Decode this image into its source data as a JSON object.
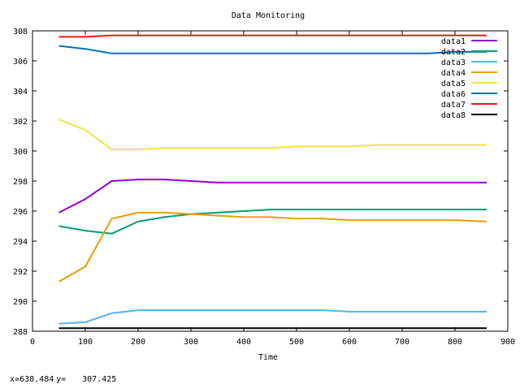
{
  "status": {
    "x_label": "x=",
    "x_value": "638.484",
    "y_label": "y=",
    "y_value": "307.425"
  },
  "chart_data": {
    "type": "line",
    "title": "Data Monitoring",
    "xlabel": "Time",
    "ylabel": "",
    "xlim": [
      0,
      900
    ],
    "ylim": [
      288,
      308
    ],
    "xticks": [
      0,
      100,
      200,
      300,
      400,
      500,
      600,
      700,
      800,
      900
    ],
    "yticks": [
      288,
      290,
      292,
      294,
      296,
      298,
      300,
      302,
      304,
      306,
      308
    ],
    "grid": false,
    "legend_position": "top-right",
    "x": [
      50,
      100,
      150,
      200,
      250,
      300,
      350,
      400,
      450,
      500,
      550,
      600,
      650,
      700,
      750,
      800,
      860
    ],
    "series": [
      {
        "name": "data1",
        "color": "#9400d3",
        "values": [
          295.9,
          296.8,
          298.0,
          298.1,
          298.1,
          298.0,
          297.9,
          297.9,
          297.9,
          297.9,
          297.9,
          297.9,
          297.9,
          297.9,
          297.9,
          297.9,
          297.9
        ]
      },
      {
        "name": "data2",
        "color": "#009e73",
        "values": [
          295.0,
          294.7,
          294.5,
          295.3,
          295.6,
          295.8,
          295.9,
          296.0,
          296.1,
          296.1,
          296.1,
          296.1,
          296.1,
          296.1,
          296.1,
          296.1,
          296.1
        ]
      },
      {
        "name": "data3",
        "color": "#56b4e9",
        "values": [
          288.5,
          288.6,
          289.2,
          289.4,
          289.4,
          289.4,
          289.4,
          289.4,
          289.4,
          289.4,
          289.4,
          289.3,
          289.3,
          289.3,
          289.3,
          289.3,
          289.3
        ]
      },
      {
        "name": "data4",
        "color": "#e69f00",
        "values": [
          291.3,
          292.3,
          295.5,
          295.9,
          295.9,
          295.8,
          295.7,
          295.6,
          295.6,
          295.5,
          295.5,
          295.4,
          295.4,
          295.4,
          295.4,
          295.4,
          295.3
        ]
      },
      {
        "name": "data5",
        "color": "#f0e442",
        "values": [
          302.1,
          301.4,
          300.1,
          300.1,
          300.2,
          300.2,
          300.2,
          300.2,
          300.2,
          300.3,
          300.3,
          300.3,
          300.4,
          300.4,
          300.4,
          300.4,
          300.4
        ]
      },
      {
        "name": "data6",
        "color": "#0072b2",
        "values": [
          307.0,
          306.8,
          306.5,
          306.5,
          306.5,
          306.5,
          306.5,
          306.5,
          306.5,
          306.5,
          306.5,
          306.5,
          306.5,
          306.5,
          306.5,
          306.6,
          306.6
        ]
      },
      {
        "name": "data7",
        "color": "#e51e10",
        "values": [
          307.6,
          307.6,
          307.7,
          307.7,
          307.7,
          307.7,
          307.7,
          307.7,
          307.7,
          307.7,
          307.7,
          307.7,
          307.7,
          307.7,
          307.7,
          307.7,
          307.7
        ]
      },
      {
        "name": "data8",
        "color": "#000000",
        "values": [
          288.2,
          288.2,
          288.2,
          288.2,
          288.2,
          288.2,
          288.2,
          288.2,
          288.2,
          288.2,
          288.2,
          288.2,
          288.2,
          288.2,
          288.2,
          288.2,
          288.2
        ]
      }
    ]
  }
}
